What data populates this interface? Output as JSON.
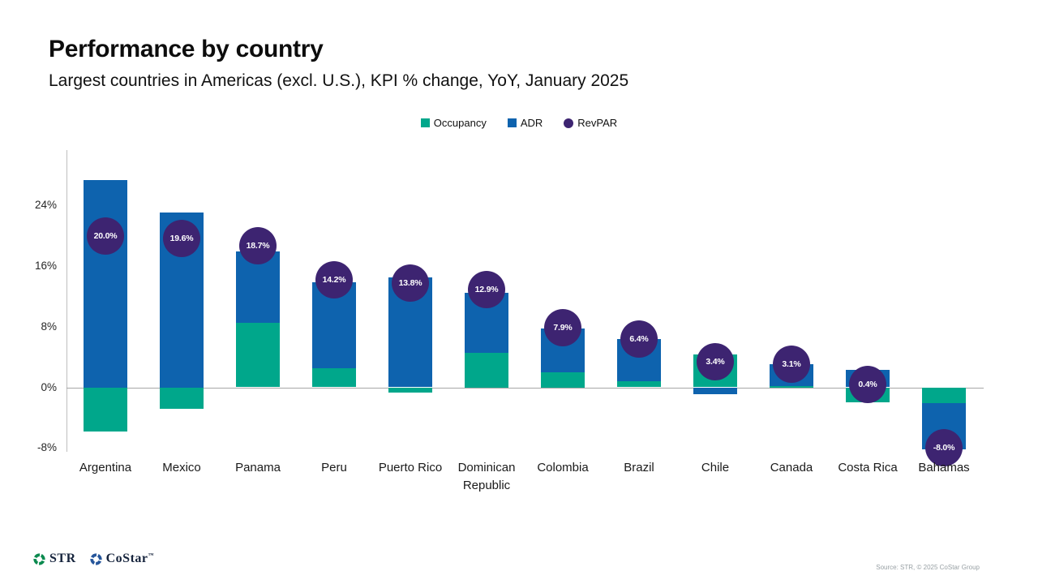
{
  "header": {
    "title": "Performance by country",
    "subtitle": "Largest countries in Americas (excl. U.S.), KPI % change, YoY, January 2025"
  },
  "chart_data": {
    "type": "bar",
    "stacked": true,
    "title": "Performance by country",
    "subtitle": "Largest countries in Americas (excl. U.S.), KPI % change, YoY, January 2025",
    "categories": [
      "Argentina",
      "Mexico",
      "Panama",
      "Peru",
      "Puerto Rico",
      "Dominican Republic",
      "Colombia",
      "Brazil",
      "Chile",
      "Canada",
      "Costa Rica",
      "Bahamas"
    ],
    "series": [
      {
        "name": "Occupancy",
        "color": "#00a78b",
        "values": [
          -5.8,
          -2.8,
          8.5,
          2.5,
          -0.6,
          4.6,
          2.0,
          0.8,
          4.3,
          0.2,
          -1.9,
          -2.1
        ]
      },
      {
        "name": "ADR",
        "color": "#0e63ae",
        "values": [
          27.4,
          23.1,
          9.4,
          11.4,
          14.5,
          7.9,
          5.8,
          5.6,
          -0.9,
          2.9,
          2.3,
          -6.1
        ]
      }
    ],
    "point_series": {
      "name": "RevPAR",
      "color": "#3d2471",
      "values": [
        20.0,
        19.6,
        18.7,
        14.2,
        13.8,
        12.9,
        7.9,
        6.4,
        3.4,
        3.1,
        0.4,
        -8.0
      ],
      "labels": [
        "20.0%",
        "19.6%",
        "18.7%",
        "14.2%",
        "13.8%",
        "12.9%",
        "7.9%",
        "6.4%",
        "3.4%",
        "3.1%",
        "0.4%",
        "-8.0%"
      ]
    },
    "yticks": [
      {
        "value": 24,
        "label": "24%"
      },
      {
        "value": 16,
        "label": "16%"
      },
      {
        "value": 8,
        "label": "8%"
      },
      {
        "value": 0,
        "label": "0%"
      },
      {
        "value": -8,
        "label": "-8%"
      }
    ],
    "ylim": [
      -9.5,
      31.5
    ],
    "xlabel": "",
    "ylabel": "",
    "grid": "zero-line-only",
    "legend_position": "top"
  },
  "footer": {
    "str_label": "STR",
    "costar_label": "CoStar",
    "costar_tm": "™",
    "str_logo_color": "#0b8a4f",
    "costar_logo_color": "#26569b",
    "source": "Source: STR, © 2025 CoStar Group"
  }
}
